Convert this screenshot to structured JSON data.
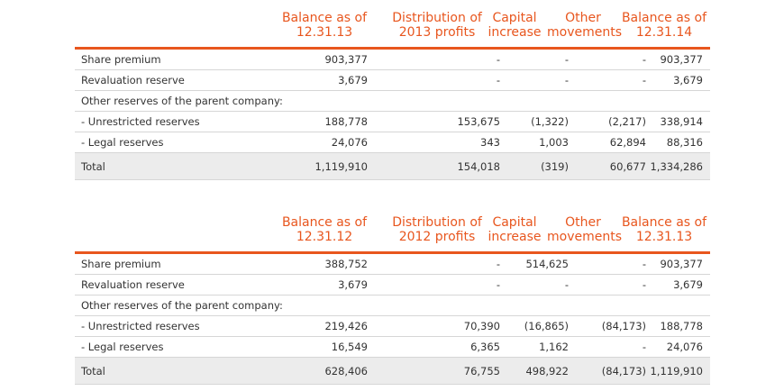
{
  "headers_2014": [
    "Balance as of\n12.31.13",
    "Distribution of\n2013 profits",
    "Capital\nincrease",
    "Other\nmovements",
    "Balance as of\n12.31.14"
  ],
  "rows_2014": [
    {
      "label": "Share premium",
      "values": [
        "903,377",
        "-",
        "-",
        "-",
        "903,377"
      ]
    },
    {
      "label": "Revaluation reserve",
      "values": [
        "3,679",
        "-",
        "-",
        "-",
        "3,679"
      ]
    },
    {
      "label": "Other reserves of the parent company:",
      "values": [
        "",
        "",
        "",
        "",
        ""
      ]
    },
    {
      "label": "- Unrestricted reserves",
      "values": [
        "188,778",
        "153,675",
        "(1,322)",
        "(2,217)",
        "338,914"
      ]
    },
    {
      "label": "- Legal reserves",
      "values": [
        "24,076",
        "343",
        "1,003",
        "62,894",
        "88,316"
      ]
    },
    {
      "label": "Total",
      "values": [
        "1,119,910",
        "154,018",
        "(319)",
        "60,677",
        "1,334,286"
      ]
    }
  ],
  "headers_2013": [
    "Balance as of\n12.31.12",
    "Distribution of\n2012 profits",
    "Capital\nincrease",
    "Other\nmovements",
    "Balance as of\n12.31.13"
  ],
  "rows_2013": [
    {
      "label": "Share premium",
      "values": [
        "388,752",
        "-",
        "514,625",
        "-",
        "903,377"
      ]
    },
    {
      "label": "Revaluation reserve",
      "values": [
        "3,679",
        "-",
        "-",
        "-",
        "3,679"
      ]
    },
    {
      "label": "Other reserves of the parent company:",
      "values": [
        "",
        "",
        "",
        "",
        ""
      ]
    },
    {
      "label": "- Unrestricted reserves",
      "values": [
        "219,426",
        "70,390",
        "(16,865)",
        "(84,173)",
        "188,778"
      ]
    },
    {
      "label": "- Legal reserves",
      "values": [
        "16,549",
        "6,365",
        "1,162",
        "-",
        "24,076"
      ]
    },
    {
      "label": "Total",
      "values": [
        "628,406",
        "76,755",
        "498,922",
        "(84,173)",
        "1,119,910"
      ]
    }
  ],
  "colors": {
    "accent": "#e8561e",
    "total_bg": "#ececec",
    "rule": "#d6d6d6"
  }
}
